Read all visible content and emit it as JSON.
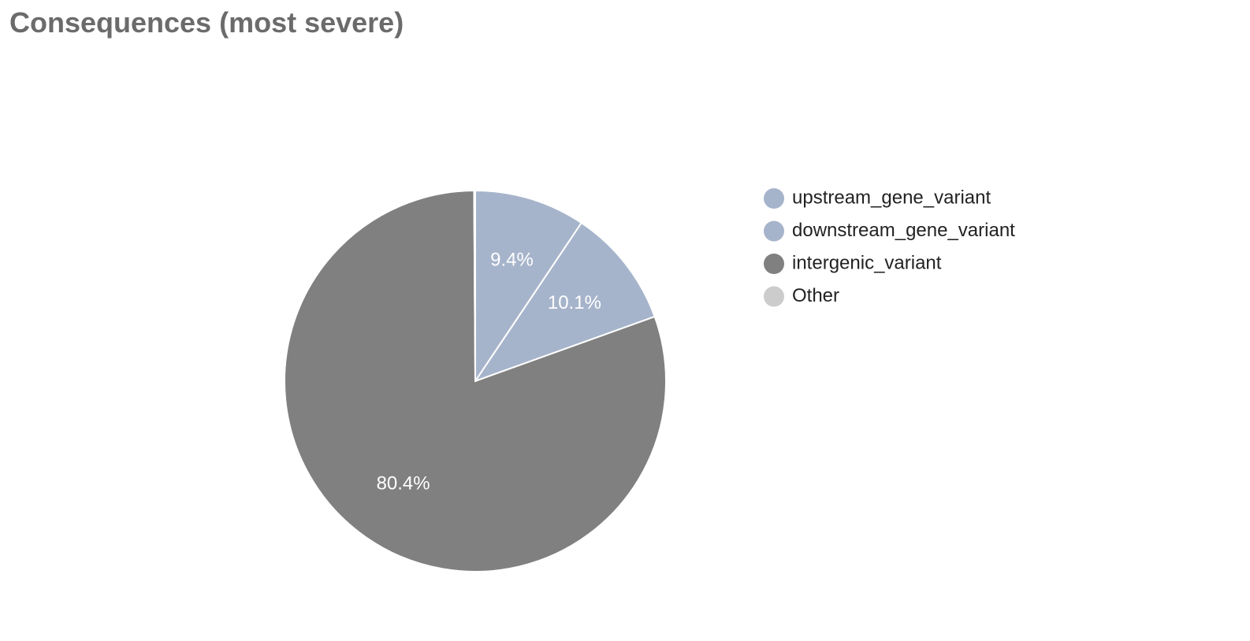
{
  "page": {
    "title": "Consequences (most severe)"
  },
  "chart_data": {
    "type": "pie",
    "title": "Consequences (most severe)",
    "start_angle_deg": 0,
    "direction": "clockwise",
    "legend_position": "right",
    "slices": [
      {
        "name": "upstream_gene_variant",
        "value": 9.4,
        "label": "9.4%",
        "color": "#a6b4cb"
      },
      {
        "name": "downstream_gene_variant",
        "value": 10.1,
        "label": "10.1%",
        "color": "#a6b4cb"
      },
      {
        "name": "intergenic_variant",
        "value": 80.4,
        "label": "80.4%",
        "color": "#808080"
      },
      {
        "name": "Other",
        "value": 0.1,
        "label": "",
        "color": "#cccccc"
      }
    ]
  }
}
